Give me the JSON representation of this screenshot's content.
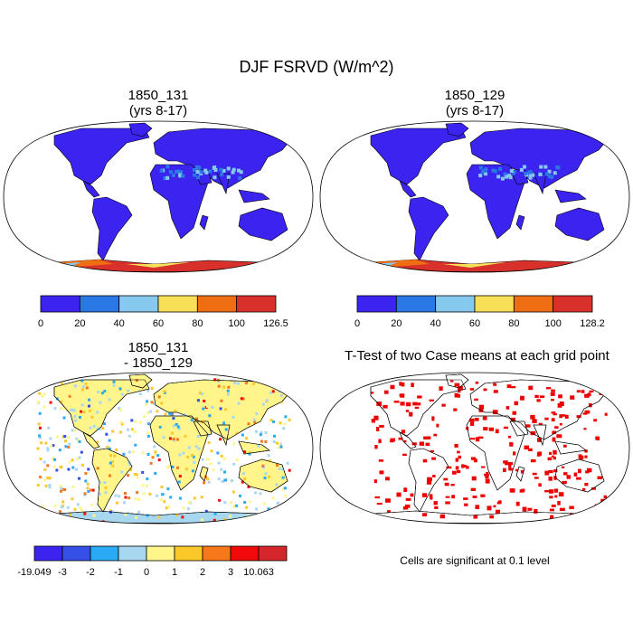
{
  "title": "DJF FSRVD (W/m^2)",
  "panels": [
    {
      "id": "p1",
      "title": [
        "1850_131",
        "(yrs 8-17)"
      ]
    },
    {
      "id": "p2",
      "title": [
        "1850_129",
        "(yrs 8-17)"
      ]
    },
    {
      "id": "p3",
      "title": [
        "1850_131",
        "- 1850_129"
      ]
    },
    {
      "id": "p4",
      "title": [
        "T-Test of two Case means at each grid point"
      ]
    }
  ],
  "colorbars": {
    "cb1": {
      "colors": [
        "#3b24f0",
        "#2a78e6",
        "#86c9ee",
        "#f7df57",
        "#f06e12",
        "#d8312c"
      ],
      "labels": [
        "0",
        "20",
        "40",
        "60",
        "80",
        "100",
        "126.5"
      ]
    },
    "cb2": {
      "colors": [
        "#3b24f0",
        "#2a78e6",
        "#86c9ee",
        "#f7df57",
        "#f06e12",
        "#d8312c"
      ],
      "labels": [
        "0",
        "20",
        "40",
        "60",
        "80",
        "100",
        "128.2"
      ]
    },
    "cb3": {
      "colors": [
        "#3b24f0",
        "#3450e6",
        "#2aaaf2",
        "#a8d7f0",
        "#fff58a",
        "#fbc82a",
        "#f7781b",
        "#f20a0a",
        "#d5272b"
      ],
      "labels": [
        "-19.049",
        "-3",
        "-2",
        "-1",
        "0",
        "1",
        "2",
        "3",
        "10.063"
      ]
    }
  },
  "note": "Cells are significant at 0.1 level",
  "map_colors": {
    "ocean": "#ffffff",
    "land_low": "#3b24f0",
    "antarctica": "#d8312c",
    "significant": "#ee0000"
  }
}
